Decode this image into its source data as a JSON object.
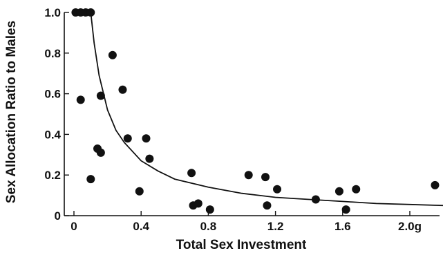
{
  "chart_data": {
    "type": "scatter",
    "title": "",
    "xlabel": "Total Sex Investment",
    "ylabel": "Sex Allocation Ratio to Males",
    "xlim": [
      -0.05,
      2.2
    ],
    "ylim": [
      0,
      1.0
    ],
    "x_ticks": [
      {
        "value": 0,
        "label": "0"
      },
      {
        "value": 0.4,
        "label": "0.4"
      },
      {
        "value": 0.8,
        "label": "0.8"
      },
      {
        "value": 1.2,
        "label": "1.2"
      },
      {
        "value": 1.6,
        "label": "1.6"
      },
      {
        "value": 2.0,
        "label": "2.0g"
      }
    ],
    "y_ticks": [
      {
        "value": 0,
        "label": "0"
      },
      {
        "value": 0.2,
        "label": "0.2"
      },
      {
        "value": 0.4,
        "label": "0.4"
      },
      {
        "value": 0.6,
        "label": "0.6"
      },
      {
        "value": 0.8,
        "label": "0.8"
      },
      {
        "value": 1.0,
        "label": "1.0"
      }
    ],
    "grid": false,
    "series": [
      {
        "points": [
          {
            "x": 0.01,
            "y": 1.0
          },
          {
            "x": 0.04,
            "y": 1.0
          },
          {
            "x": 0.07,
            "y": 1.0
          },
          {
            "x": 0.1,
            "y": 1.0
          },
          {
            "x": 0.04,
            "y": 0.57
          },
          {
            "x": 0.1,
            "y": 0.18
          },
          {
            "x": 0.14,
            "y": 0.33
          },
          {
            "x": 0.16,
            "y": 0.59
          },
          {
            "x": 0.16,
            "y": 0.31
          },
          {
            "x": 0.23,
            "y": 0.79
          },
          {
            "x": 0.29,
            "y": 0.62
          },
          {
            "x": 0.32,
            "y": 0.38
          },
          {
            "x": 0.39,
            "y": 0.12
          },
          {
            "x": 0.43,
            "y": 0.38
          },
          {
            "x": 0.45,
            "y": 0.28
          },
          {
            "x": 0.7,
            "y": 0.21
          },
          {
            "x": 0.71,
            "y": 0.05
          },
          {
            "x": 0.74,
            "y": 0.06
          },
          {
            "x": 0.81,
            "y": 0.03
          },
          {
            "x": 1.04,
            "y": 0.2
          },
          {
            "x": 1.14,
            "y": 0.19
          },
          {
            "x": 1.15,
            "y": 0.05
          },
          {
            "x": 1.21,
            "y": 0.13
          },
          {
            "x": 1.44,
            "y": 0.08
          },
          {
            "x": 1.58,
            "y": 0.12
          },
          {
            "x": 1.62,
            "y": 0.03
          },
          {
            "x": 1.68,
            "y": 0.13
          },
          {
            "x": 2.15,
            "y": 0.15
          }
        ]
      }
    ],
    "fit_curve": [
      {
        "x": 0.1,
        "y": 1.0
      },
      {
        "x": 0.12,
        "y": 0.85
      },
      {
        "x": 0.15,
        "y": 0.69
      },
      {
        "x": 0.2,
        "y": 0.52
      },
      {
        "x": 0.25,
        "y": 0.42
      },
      {
        "x": 0.3,
        "y": 0.36
      },
      {
        "x": 0.4,
        "y": 0.27
      },
      {
        "x": 0.5,
        "y": 0.22
      },
      {
        "x": 0.6,
        "y": 0.18
      },
      {
        "x": 0.8,
        "y": 0.14
      },
      {
        "x": 1.0,
        "y": 0.11
      },
      {
        "x": 1.2,
        "y": 0.09
      },
      {
        "x": 1.4,
        "y": 0.08
      },
      {
        "x": 1.6,
        "y": 0.07
      },
      {
        "x": 1.8,
        "y": 0.06
      },
      {
        "x": 2.0,
        "y": 0.055
      },
      {
        "x": 2.2,
        "y": 0.05
      }
    ]
  }
}
